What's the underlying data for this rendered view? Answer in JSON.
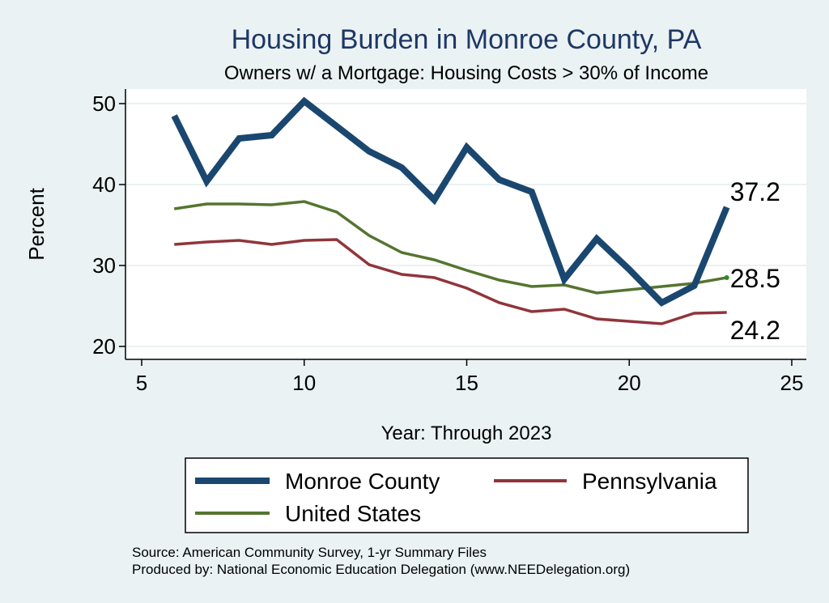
{
  "chart_data": {
    "type": "line",
    "title": "Housing Burden in Monroe County, PA",
    "subtitle": "Owners w/ a Mortgage: Housing Costs > 30% of Income",
    "xlabel": "Year: Through 2023",
    "ylabel": "Percent",
    "xlim": [
      5,
      25
    ],
    "ylim": [
      20,
      51
    ],
    "xticks": [
      5,
      10,
      15,
      20,
      25
    ],
    "yticks": [
      20,
      30,
      40,
      50
    ],
    "grid": true,
    "legend_position": "bottom",
    "series": [
      {
        "name": "Monroe County",
        "color": "#1a476f",
        "x": [
          6,
          7,
          8,
          9,
          10,
          11,
          12,
          13,
          14,
          15,
          16,
          17,
          18,
          19,
          20,
          21,
          22,
          23
        ],
        "values": [
          48.5,
          40.4,
          45.7,
          46.1,
          50.3,
          47.2,
          44.1,
          42.1,
          38.1,
          44.6,
          40.6,
          39.1,
          28.3,
          33.3,
          29.5,
          25.4,
          27.5,
          37.2
        ],
        "end_label": "37.2"
      },
      {
        "name": "Pennsylvania",
        "color": "#90353b",
        "x": [
          6,
          7,
          8,
          9,
          10,
          11,
          12,
          13,
          14,
          15,
          16,
          17,
          18,
          19,
          20,
          21,
          22,
          23
        ],
        "values": [
          32.6,
          32.9,
          33.1,
          32.6,
          33.1,
          33.2,
          30.1,
          28.9,
          28.5,
          27.2,
          25.4,
          24.3,
          24.6,
          23.4,
          23.1,
          22.8,
          24.1,
          24.2
        ],
        "end_label": "24.2"
      },
      {
        "name": "United States",
        "color": "#55752f",
        "x": [
          6,
          7,
          8,
          9,
          10,
          11,
          12,
          13,
          14,
          15,
          16,
          17,
          18,
          19,
          20,
          21,
          22,
          23
        ],
        "values": [
          37.0,
          37.6,
          37.6,
          37.5,
          37.9,
          36.6,
          33.7,
          31.6,
          30.7,
          29.4,
          28.2,
          27.4,
          27.6,
          26.6,
          27.0,
          27.4,
          27.8,
          28.5
        ],
        "end_label": "28.5"
      }
    ],
    "legend_order": [
      "Monroe County",
      "Pennsylvania",
      "United States"
    ],
    "source_lines": [
      "Source: American Community Survey, 1-yr Summary Files",
      "Produced by: National Economic Education Delegation (www.NEEDelegation.org)"
    ]
  }
}
